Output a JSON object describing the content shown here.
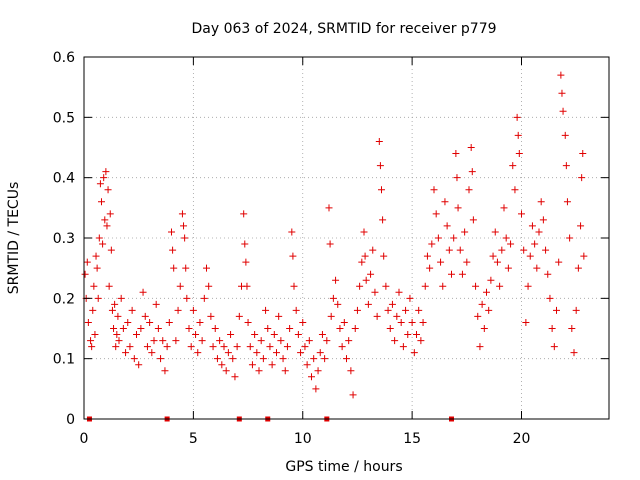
{
  "chart_data": {
    "type": "scatter",
    "title": "Day 063 of 2024, SRMTID for receiver p779",
    "xlabel": "GPS time / hours",
    "ylabel": "SRMTID / TECUs",
    "xlim": [
      0,
      24
    ],
    "ylim": [
      0,
      0.6
    ],
    "x_ticks": [
      0,
      5,
      10,
      15,
      20
    ],
    "x_tick_labels": [
      "0",
      "5",
      "10",
      "15",
      "20"
    ],
    "y_ticks": [
      0,
      0.1,
      0.2,
      0.3,
      0.4,
      0.5,
      0.6
    ],
    "y_tick_labels": [
      "0",
      "0.1",
      "0.2",
      "0.3",
      "0.4",
      "0.5",
      "0.6"
    ],
    "grid": true,
    "marker": "+",
    "color": "#e00000",
    "zero_markers_x": [
      0.25,
      3.8,
      7.1,
      8.4,
      11.1,
      16.8
    ],
    "series": [
      {
        "name": "SRMTID",
        "points": [
          [
            0.05,
            0.24
          ],
          [
            0.1,
            0.2
          ],
          [
            0.15,
            0.26
          ],
          [
            0.2,
            0.16
          ],
          [
            0.3,
            0.13
          ],
          [
            0.35,
            0.12
          ],
          [
            0.4,
            0.18
          ],
          [
            0.45,
            0.22
          ],
          [
            0.5,
            0.14
          ],
          [
            0.55,
            0.27
          ],
          [
            0.6,
            0.25
          ],
          [
            0.65,
            0.2
          ],
          [
            0.7,
            0.3
          ],
          [
            0.75,
            0.39
          ],
          [
            0.8,
            0.36
          ],
          [
            0.85,
            0.29
          ],
          [
            0.9,
            0.4
          ],
          [
            0.95,
            0.33
          ],
          [
            1.0,
            0.41
          ],
          [
            1.05,
            0.32
          ],
          [
            1.1,
            0.38
          ],
          [
            1.15,
            0.22
          ],
          [
            1.2,
            0.34
          ],
          [
            1.25,
            0.28
          ],
          [
            1.3,
            0.18
          ],
          [
            1.35,
            0.15
          ],
          [
            1.4,
            0.19
          ],
          [
            1.45,
            0.12
          ],
          [
            1.5,
            0.14
          ],
          [
            1.55,
            0.17
          ],
          [
            1.6,
            0.13
          ],
          [
            1.7,
            0.2
          ],
          [
            1.8,
            0.15
          ],
          [
            1.9,
            0.11
          ],
          [
            2.0,
            0.16
          ],
          [
            2.1,
            0.12
          ],
          [
            2.2,
            0.18
          ],
          [
            2.3,
            0.1
          ],
          [
            2.4,
            0.14
          ],
          [
            2.5,
            0.09
          ],
          [
            2.6,
            0.15
          ],
          [
            2.7,
            0.21
          ],
          [
            2.8,
            0.17
          ],
          [
            2.9,
            0.12
          ],
          [
            3.0,
            0.16
          ],
          [
            3.1,
            0.11
          ],
          [
            3.2,
            0.13
          ],
          [
            3.3,
            0.19
          ],
          [
            3.4,
            0.15
          ],
          [
            3.5,
            0.1
          ],
          [
            3.6,
            0.13
          ],
          [
            3.7,
            0.08
          ],
          [
            3.8,
            0.12
          ],
          [
            3.9,
            0.16
          ],
          [
            4.0,
            0.31
          ],
          [
            4.05,
            0.28
          ],
          [
            4.1,
            0.25
          ],
          [
            4.2,
            0.13
          ],
          [
            4.3,
            0.18
          ],
          [
            4.4,
            0.22
          ],
          [
            4.5,
            0.34
          ],
          [
            4.55,
            0.32
          ],
          [
            4.6,
            0.3
          ],
          [
            4.65,
            0.25
          ],
          [
            4.7,
            0.2
          ],
          [
            4.8,
            0.15
          ],
          [
            4.9,
            0.12
          ],
          [
            5.0,
            0.18
          ],
          [
            5.1,
            0.14
          ],
          [
            5.2,
            0.11
          ],
          [
            5.3,
            0.16
          ],
          [
            5.4,
            0.13
          ],
          [
            5.5,
            0.2
          ],
          [
            5.6,
            0.25
          ],
          [
            5.7,
            0.22
          ],
          [
            5.8,
            0.17
          ],
          [
            5.9,
            0.12
          ],
          [
            6.0,
            0.15
          ],
          [
            6.1,
            0.1
          ],
          [
            6.2,
            0.13
          ],
          [
            6.3,
            0.09
          ],
          [
            6.4,
            0.12
          ],
          [
            6.5,
            0.08
          ],
          [
            6.6,
            0.11
          ],
          [
            6.7,
            0.14
          ],
          [
            6.8,
            0.1
          ],
          [
            6.9,
            0.07
          ],
          [
            7.0,
            0.12
          ],
          [
            7.1,
            0.17
          ],
          [
            7.2,
            0.22
          ],
          [
            7.3,
            0.34
          ],
          [
            7.35,
            0.29
          ],
          [
            7.4,
            0.26
          ],
          [
            7.45,
            0.22
          ],
          [
            7.5,
            0.16
          ],
          [
            7.6,
            0.12
          ],
          [
            7.7,
            0.09
          ],
          [
            7.8,
            0.14
          ],
          [
            7.9,
            0.11
          ],
          [
            8.0,
            0.08
          ],
          [
            8.1,
            0.13
          ],
          [
            8.2,
            0.1
          ],
          [
            8.3,
            0.18
          ],
          [
            8.4,
            0.15
          ],
          [
            8.5,
            0.12
          ],
          [
            8.6,
            0.09
          ],
          [
            8.7,
            0.14
          ],
          [
            8.8,
            0.11
          ],
          [
            8.9,
            0.17
          ],
          [
            9.0,
            0.13
          ],
          [
            9.1,
            0.1
          ],
          [
            9.2,
            0.08
          ],
          [
            9.3,
            0.12
          ],
          [
            9.4,
            0.15
          ],
          [
            9.5,
            0.31
          ],
          [
            9.55,
            0.27
          ],
          [
            9.6,
            0.22
          ],
          [
            9.7,
            0.18
          ],
          [
            9.8,
            0.14
          ],
          [
            9.9,
            0.11
          ],
          [
            10.0,
            0.16
          ],
          [
            10.1,
            0.12
          ],
          [
            10.2,
            0.09
          ],
          [
            10.3,
            0.13
          ],
          [
            10.4,
            0.07
          ],
          [
            10.5,
            0.1
          ],
          [
            10.6,
            0.05
          ],
          [
            10.7,
            0.08
          ],
          [
            10.8,
            0.11
          ],
          [
            10.9,
            0.14
          ],
          [
            11.0,
            0.1
          ],
          [
            11.1,
            0.13
          ],
          [
            11.2,
            0.35
          ],
          [
            11.25,
            0.29
          ],
          [
            11.3,
            0.17
          ],
          [
            11.4,
            0.2
          ],
          [
            11.5,
            0.23
          ],
          [
            11.6,
            0.19
          ],
          [
            11.7,
            0.15
          ],
          [
            11.8,
            0.12
          ],
          [
            11.9,
            0.16
          ],
          [
            12.0,
            0.1
          ],
          [
            12.1,
            0.13
          ],
          [
            12.2,
            0.08
          ],
          [
            12.3,
            0.04
          ],
          [
            12.4,
            0.15
          ],
          [
            12.5,
            0.18
          ],
          [
            12.6,
            0.22
          ],
          [
            12.7,
            0.26
          ],
          [
            12.8,
            0.31
          ],
          [
            12.85,
            0.27
          ],
          [
            12.9,
            0.23
          ],
          [
            13.0,
            0.19
          ],
          [
            13.1,
            0.24
          ],
          [
            13.2,
            0.28
          ],
          [
            13.3,
            0.21
          ],
          [
            13.4,
            0.17
          ],
          [
            13.5,
            0.46
          ],
          [
            13.55,
            0.42
          ],
          [
            13.6,
            0.38
          ],
          [
            13.65,
            0.33
          ],
          [
            13.7,
            0.27
          ],
          [
            13.8,
            0.22
          ],
          [
            13.9,
            0.18
          ],
          [
            14.0,
            0.15
          ],
          [
            14.1,
            0.19
          ],
          [
            14.2,
            0.13
          ],
          [
            14.3,
            0.17
          ],
          [
            14.4,
            0.21
          ],
          [
            14.5,
            0.16
          ],
          [
            14.6,
            0.12
          ],
          [
            14.7,
            0.18
          ],
          [
            14.8,
            0.14
          ],
          [
            14.9,
            0.2
          ],
          [
            15.0,
            0.16
          ],
          [
            15.1,
            0.11
          ],
          [
            15.2,
            0.14
          ],
          [
            15.3,
            0.18
          ],
          [
            15.4,
            0.13
          ],
          [
            15.5,
            0.16
          ],
          [
            15.6,
            0.22
          ],
          [
            15.7,
            0.27
          ],
          [
            15.8,
            0.25
          ],
          [
            15.9,
            0.29
          ],
          [
            16.0,
            0.38
          ],
          [
            16.1,
            0.34
          ],
          [
            16.2,
            0.3
          ],
          [
            16.3,
            0.26
          ],
          [
            16.4,
            0.22
          ],
          [
            16.5,
            0.36
          ],
          [
            16.6,
            0.32
          ],
          [
            16.7,
            0.28
          ],
          [
            16.8,
            0.24
          ],
          [
            16.9,
            0.3
          ],
          [
            17.0,
            0.44
          ],
          [
            17.05,
            0.4
          ],
          [
            17.1,
            0.35
          ],
          [
            17.2,
            0.28
          ],
          [
            17.3,
            0.24
          ],
          [
            17.4,
            0.31
          ],
          [
            17.5,
            0.26
          ],
          [
            17.6,
            0.38
          ],
          [
            17.7,
            0.45
          ],
          [
            17.75,
            0.41
          ],
          [
            17.8,
            0.33
          ],
          [
            17.9,
            0.22
          ],
          [
            18.0,
            0.17
          ],
          [
            18.1,
            0.12
          ],
          [
            18.2,
            0.19
          ],
          [
            18.3,
            0.15
          ],
          [
            18.4,
            0.21
          ],
          [
            18.5,
            0.18
          ],
          [
            18.6,
            0.23
          ],
          [
            18.7,
            0.27
          ],
          [
            18.8,
            0.31
          ],
          [
            18.9,
            0.26
          ],
          [
            19.0,
            0.22
          ],
          [
            19.1,
            0.28
          ],
          [
            19.2,
            0.35
          ],
          [
            19.3,
            0.3
          ],
          [
            19.4,
            0.25
          ],
          [
            19.5,
            0.29
          ],
          [
            19.6,
            0.42
          ],
          [
            19.7,
            0.38
          ],
          [
            19.8,
            0.5
          ],
          [
            19.85,
            0.47
          ],
          [
            19.9,
            0.44
          ],
          [
            20.0,
            0.34
          ],
          [
            20.1,
            0.28
          ],
          [
            20.2,
            0.16
          ],
          [
            20.3,
            0.22
          ],
          [
            20.4,
            0.27
          ],
          [
            20.5,
            0.32
          ],
          [
            20.6,
            0.29
          ],
          [
            20.7,
            0.25
          ],
          [
            20.8,
            0.31
          ],
          [
            20.9,
            0.36
          ],
          [
            21.0,
            0.33
          ],
          [
            21.1,
            0.28
          ],
          [
            21.2,
            0.24
          ],
          [
            21.3,
            0.2
          ],
          [
            21.4,
            0.15
          ],
          [
            21.5,
            0.12
          ],
          [
            21.6,
            0.18
          ],
          [
            21.7,
            0.26
          ],
          [
            21.8,
            0.57
          ],
          [
            21.85,
            0.54
          ],
          [
            21.9,
            0.51
          ],
          [
            22.0,
            0.47
          ],
          [
            22.05,
            0.42
          ],
          [
            22.1,
            0.36
          ],
          [
            22.2,
            0.3
          ],
          [
            22.3,
            0.15
          ],
          [
            22.4,
            0.11
          ],
          [
            22.5,
            0.18
          ],
          [
            22.6,
            0.25
          ],
          [
            22.7,
            0.32
          ],
          [
            22.75,
            0.4
          ],
          [
            22.8,
            0.44
          ],
          [
            22.85,
            0.27
          ]
        ]
      }
    ]
  }
}
